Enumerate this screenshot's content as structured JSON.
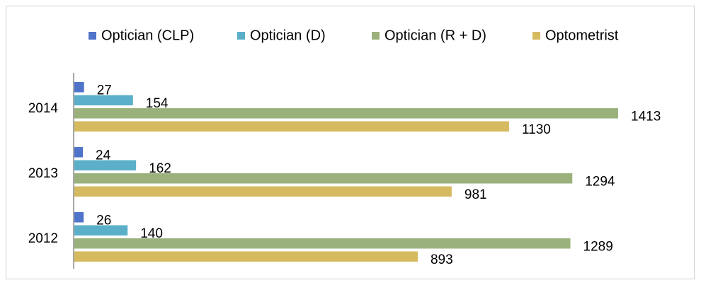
{
  "chart_data": {
    "type": "bar",
    "orientation": "horizontal",
    "categories": [
      "2012",
      "2013",
      "2014"
    ],
    "series": [
      {
        "name": "Optician (CLP)",
        "color": "#4f74c9",
        "values": [
          26,
          24,
          27
        ]
      },
      {
        "name": "Optician (D)",
        "color": "#5bafc9",
        "values": [
          140,
          162,
          154
        ]
      },
      {
        "name": "Optician (R + D)",
        "color": "#9ab17c",
        "values": [
          1289,
          1294,
          1413
        ]
      },
      {
        "name": "Optometrist",
        "color": "#d6ba60",
        "values": [
          893,
          981,
          1130
        ]
      }
    ],
    "legend": "top"
  }
}
